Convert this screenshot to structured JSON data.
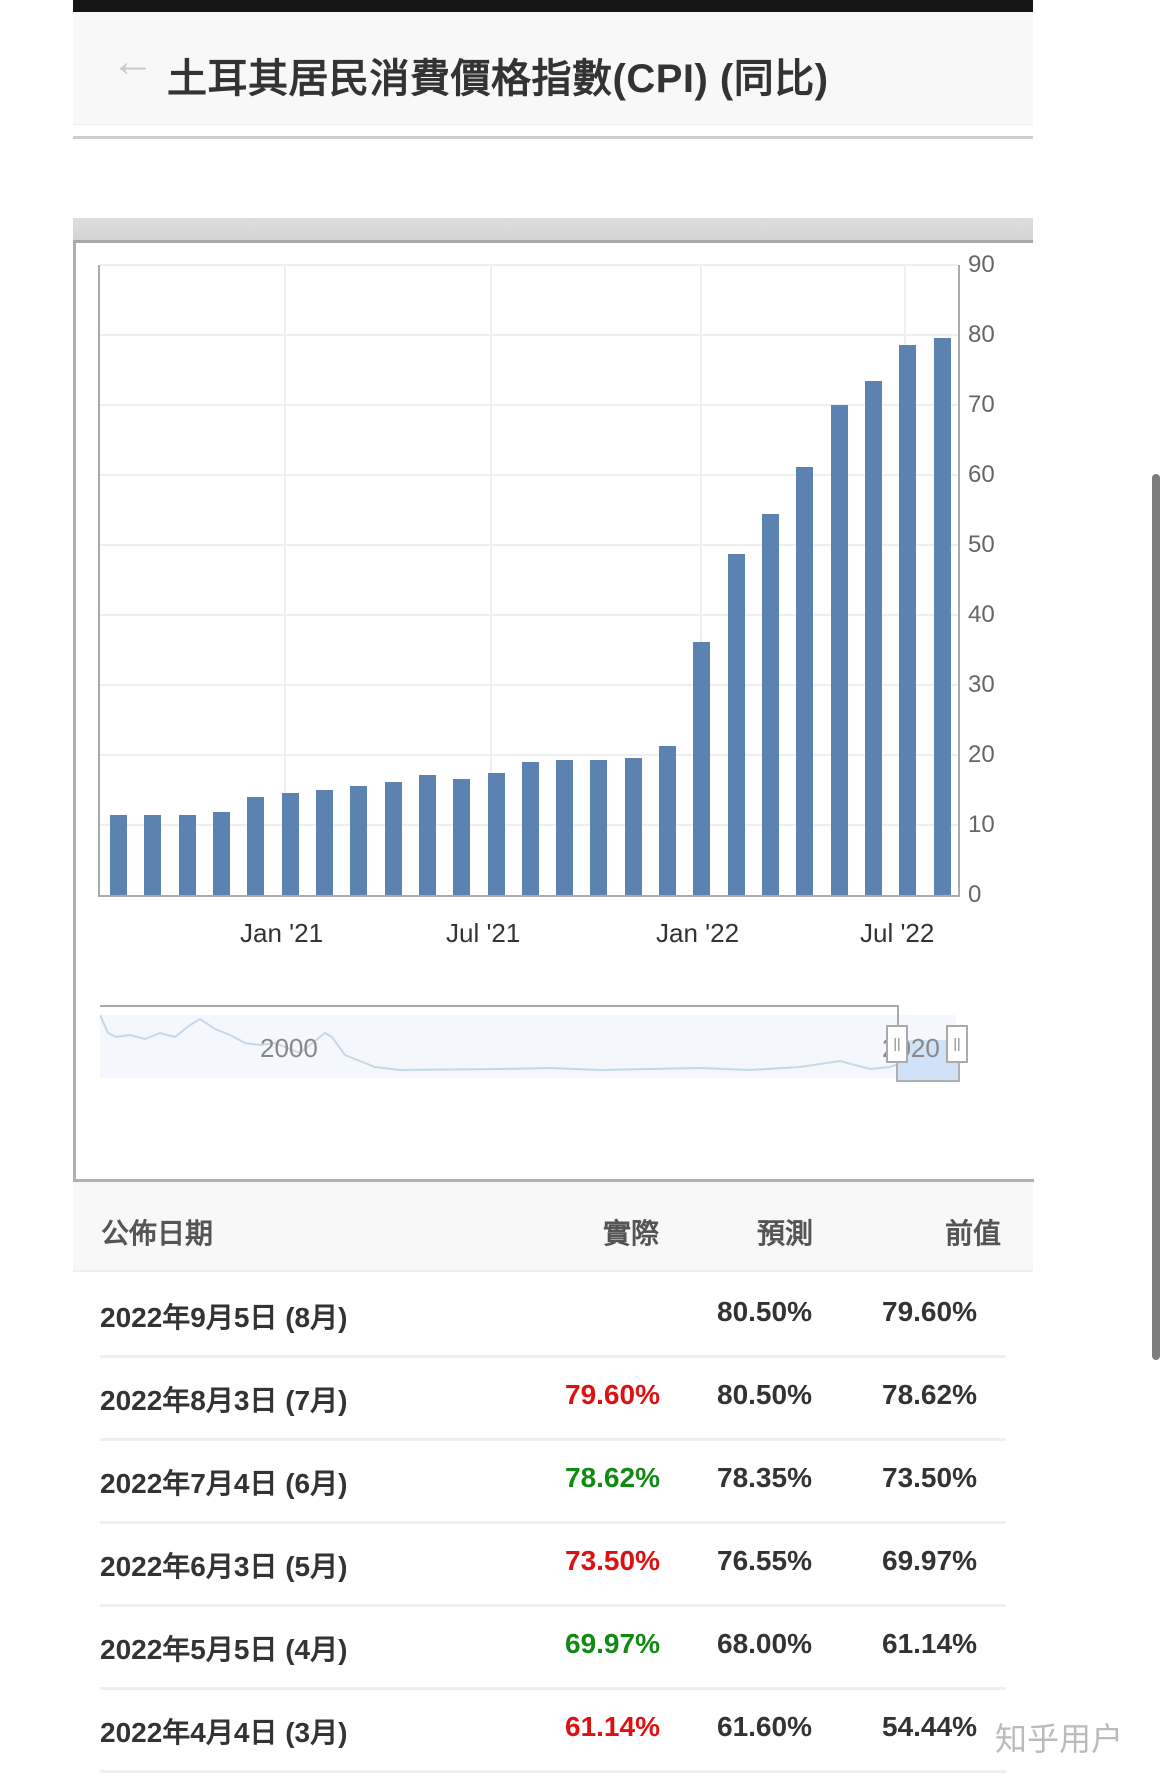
{
  "header": {
    "back_icon": "arrow-left-icon",
    "title": "土耳其居民消費價格指數(CPI) (同比)"
  },
  "chart_data": {
    "type": "bar",
    "title": "土耳其居民消費價格指數(CPI) (同比)",
    "xlabel": "",
    "ylabel": "",
    "ylim": [
      0,
      90
    ],
    "yticks": [
      0,
      10,
      20,
      30,
      40,
      50,
      60,
      70,
      80,
      90
    ],
    "xtick_labels": [
      "Jan '21",
      "Jul '21",
      "Jan '22",
      "Jul '22"
    ],
    "grid": true,
    "legend": "none",
    "bar_color": "#5b82b0",
    "categories": [
      "Aug '20",
      "Sep '20",
      "Oct '20",
      "Nov '20",
      "Dec '20",
      "Jan '21",
      "Feb '21",
      "Mar '21",
      "Apr '21",
      "May '21",
      "Jun '21",
      "Jul '21",
      "Aug '21",
      "Sep '21",
      "Oct '21",
      "Nov '21",
      "Dec '21",
      "Jan '22",
      "Feb '22",
      "Mar '22",
      "Apr '22",
      "May '22",
      "Jun '22",
      "Jul '22",
      "Aug '22"
    ],
    "values": [
      11.5,
      11.5,
      11.5,
      11.9,
      14.0,
      14.6,
      15.0,
      15.6,
      16.2,
      17.1,
      16.6,
      17.5,
      19.0,
      19.3,
      19.3,
      19.6,
      21.3,
      36.1,
      48.7,
      54.4,
      61.1,
      70.0,
      73.5,
      78.6,
      79.6
    ],
    "navigator": {
      "labels": [
        "2000",
        "2020"
      ]
    }
  },
  "table": {
    "headers": {
      "date": "公佈日期",
      "actual": "實際",
      "forecast": "預測",
      "previous": "前值"
    },
    "rows": [
      {
        "date": "2022年9月5日 (8月)",
        "actual": "",
        "actual_color": "#333333",
        "forecast": "80.50%",
        "previous": "79.60%"
      },
      {
        "date": "2022年8月3日 (7月)",
        "actual": "79.60%",
        "actual_color": "#dd1111",
        "forecast": "80.50%",
        "previous": "78.62%"
      },
      {
        "date": "2022年7月4日 (6月)",
        "actual": "78.62%",
        "actual_color": "#108a10",
        "forecast": "78.35%",
        "previous": "73.50%"
      },
      {
        "date": "2022年6月3日 (5月)",
        "actual": "73.50%",
        "actual_color": "#dd1111",
        "forecast": "76.55%",
        "previous": "69.97%"
      },
      {
        "date": "2022年5月5日 (4月)",
        "actual": "69.97%",
        "actual_color": "#108a10",
        "forecast": "68.00%",
        "previous": "61.14%"
      },
      {
        "date": "2022年4月4日 (3月)",
        "actual": "61.14%",
        "actual_color": "#dd1111",
        "forecast": "61.60%",
        "previous": "54.44%"
      }
    ]
  },
  "watermark": "知乎用户"
}
